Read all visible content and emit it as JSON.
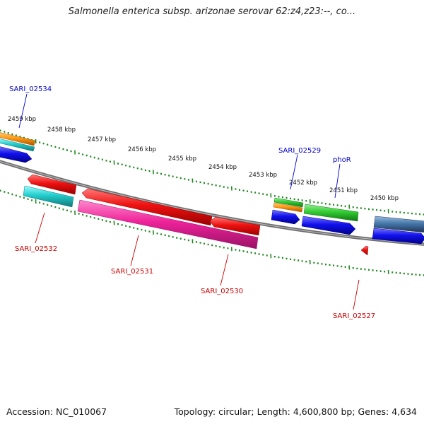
{
  "title": "Salmonella enterica subsp. arizonae serovar 62:z4,z23:--, co...",
  "footer": {
    "accession": "Accession: NC_010067",
    "topology": "Topology: circular; Length: 4,600,800 bp; Genes: 4,634"
  },
  "kbp_ticks": [
    "2459 kbp",
    "2458 kbp",
    "2457 kbp",
    "2456 kbp",
    "2455 kbp",
    "2454 kbp",
    "2453 kbp",
    "2452 kbp",
    "2451 kbp",
    "2450 kbp"
  ],
  "gene_labels": [
    {
      "text": "SARI_02534",
      "color": "#0000cc"
    },
    {
      "text": "SARI_02529",
      "color": "#0000cc"
    },
    {
      "text": "phoR",
      "color": "#0000cc"
    },
    {
      "text": "SARI_02532",
      "color": "#cc0000"
    },
    {
      "text": "SARI_02531",
      "color": "#cc0000"
    },
    {
      "text": "SARI_02530",
      "color": "#cc0000"
    },
    {
      "text": "SARI_02527",
      "color": "#cc0000"
    }
  ],
  "colors": {
    "backbone": "#7a7a7a",
    "tick": "#228822",
    "red": "#ee1111",
    "pink": "#ee2299",
    "cyan": "#22cccc",
    "blue": "#1111ee",
    "green": "#33cc33",
    "orange": "#ff9911",
    "steel": "#4477aa"
  }
}
